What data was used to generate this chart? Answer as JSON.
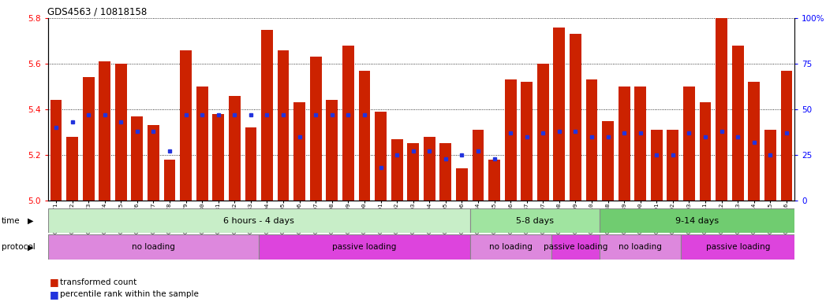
{
  "title": "GDS4563 / 10818158",
  "samples": [
    "GSM930471",
    "GSM930472",
    "GSM930473",
    "GSM930474",
    "GSM930475",
    "GSM930476",
    "GSM930477",
    "GSM930478",
    "GSM930479",
    "GSM930480",
    "GSM930481",
    "GSM930482",
    "GSM930483",
    "GSM930494",
    "GSM930495",
    "GSM930496",
    "GSM930497",
    "GSM930498",
    "GSM930499",
    "GSM930500",
    "GSM930501",
    "GSM930502",
    "GSM930503",
    "GSM930504",
    "GSM930505",
    "GSM930506",
    "GSM930484",
    "GSM930485",
    "GSM930486",
    "GSM930487",
    "GSM930507",
    "GSM930508",
    "GSM930509",
    "GSM930510",
    "GSM930488",
    "GSM930489",
    "GSM930490",
    "GSM930491",
    "GSM930492",
    "GSM930493",
    "GSM930511",
    "GSM930512",
    "GSM930513",
    "GSM930514",
    "GSM930515",
    "GSM930516"
  ],
  "red_values": [
    5.44,
    5.28,
    5.54,
    5.61,
    5.6,
    5.37,
    5.33,
    5.18,
    5.66,
    5.5,
    5.38,
    5.46,
    5.32,
    5.75,
    5.66,
    5.43,
    5.63,
    5.44,
    5.68,
    5.57,
    5.39,
    5.27,
    5.25,
    5.28,
    5.25,
    5.14,
    5.31,
    5.18,
    5.53,
    5.52,
    5.6,
    5.76,
    5.73,
    5.53,
    5.35,
    5.5,
    5.5,
    5.31,
    5.31,
    5.5,
    5.43,
    5.8,
    5.68,
    5.52,
    5.31,
    5.57
  ],
  "blue_values": [
    40,
    43,
    47,
    47,
    43,
    38,
    38,
    27,
    47,
    47,
    47,
    47,
    47,
    47,
    47,
    35,
    47,
    47,
    47,
    47,
    18,
    25,
    27,
    27,
    23,
    25,
    27,
    23,
    37,
    35,
    37,
    38,
    38,
    35,
    35,
    37,
    37,
    25,
    25,
    37,
    35,
    38,
    35,
    32,
    25,
    37
  ],
  "ylim_left": [
    5.0,
    5.8
  ],
  "ylim_right": [
    0,
    100
  ],
  "yticks_left": [
    5.0,
    5.2,
    5.4,
    5.6,
    5.8
  ],
  "yticks_right": [
    0,
    25,
    50,
    75,
    100
  ],
  "bar_color": "#CC2200",
  "dot_color": "#2233DD",
  "time_groups": [
    {
      "label": "6 hours - 4 days",
      "start": 0,
      "end": 25,
      "color": "#C8EEC8"
    },
    {
      "label": "5-8 days",
      "start": 26,
      "end": 33,
      "color": "#A0E4A0"
    },
    {
      "label": "9-14 days",
      "start": 34,
      "end": 45,
      "color": "#70CC70"
    }
  ],
  "protocol_groups": [
    {
      "label": "no loading",
      "start": 0,
      "end": 12,
      "color": "#DD88DD"
    },
    {
      "label": "passive loading",
      "start": 13,
      "end": 25,
      "color": "#DD44DD"
    },
    {
      "label": "no loading",
      "start": 26,
      "end": 30,
      "color": "#DD88DD"
    },
    {
      "label": "passive loading",
      "start": 31,
      "end": 33,
      "color": "#DD44DD"
    },
    {
      "label": "no loading",
      "start": 34,
      "end": 38,
      "color": "#DD88DD"
    },
    {
      "label": "passive loading",
      "start": 39,
      "end": 45,
      "color": "#DD44DD"
    }
  ],
  "legend_red_label": "transformed count",
  "legend_blue_label": "percentile rank within the sample",
  "time_label": "time",
  "protocol_label": "protocol"
}
